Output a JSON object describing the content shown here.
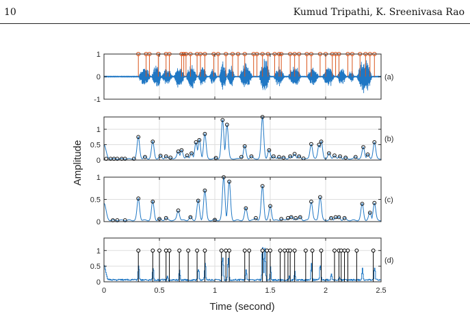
{
  "header": {
    "page_number": "10",
    "authors": "Kumud Tripathi, K. Sreenivasa Rao"
  },
  "figure": {
    "ylabel": "Amplitude",
    "xlabel": "Time (second)"
  },
  "colors": {
    "signal": "#1f77c4",
    "marker_stems": "#d95319",
    "detected_stems": "#000000",
    "grid": "#dddddd",
    "axes": "#262626"
  },
  "chart_data": [
    {
      "type": "line",
      "panel_label": "(a)",
      "description_series": "speech waveform with stem markers",
      "xlim": [
        0,
        2.5
      ],
      "ylim": [
        -1,
        1
      ],
      "yticks": [
        "-1",
        "0",
        "1"
      ],
      "bursts": [
        {
          "x0": 0.31,
          "x1": 0.42,
          "amp": 0.5
        },
        {
          "x0": 0.43,
          "x1": 0.52,
          "amp": 0.62
        },
        {
          "x0": 0.52,
          "x1": 0.62,
          "amp": 0.45
        },
        {
          "x0": 0.63,
          "x1": 0.73,
          "amp": 0.55
        },
        {
          "x0": 0.74,
          "x1": 0.84,
          "amp": 0.62
        },
        {
          "x0": 0.85,
          "x1": 0.93,
          "amp": 0.5
        },
        {
          "x0": 0.95,
          "x1": 1.02,
          "amp": 0.42
        },
        {
          "x0": 1.04,
          "x1": 1.11,
          "amp": 0.8
        },
        {
          "x0": 1.11,
          "x1": 1.18,
          "amp": 0.55
        },
        {
          "x0": 1.22,
          "x1": 1.34,
          "amp": 0.62
        },
        {
          "x0": 1.4,
          "x1": 1.5,
          "amp": 0.9
        },
        {
          "x0": 1.53,
          "x1": 1.63,
          "amp": 0.5
        },
        {
          "x0": 1.66,
          "x1": 1.78,
          "amp": 0.55
        },
        {
          "x0": 1.83,
          "x1": 1.94,
          "amp": 0.45
        },
        {
          "x0": 1.97,
          "x1": 2.08,
          "amp": 0.55
        },
        {
          "x0": 2.1,
          "x1": 2.19,
          "amp": 0.4
        },
        {
          "x0": 2.2,
          "x1": 2.26,
          "amp": 0.3
        },
        {
          "x0": 2.28,
          "x1": 2.42,
          "amp": 0.9
        }
      ],
      "stems_x": [
        0.31,
        0.38,
        0.41,
        0.49,
        0.56,
        0.59,
        0.7,
        0.72,
        0.74,
        0.78,
        0.84,
        0.87,
        0.91,
        0.99,
        1.03,
        1.1,
        1.16,
        1.21,
        1.27,
        1.35,
        1.38,
        1.43,
        1.48,
        1.54,
        1.58,
        1.6,
        1.68,
        1.72,
        1.76,
        1.83,
        1.87,
        1.95,
        2.0,
        2.06,
        2.09,
        2.12,
        2.2,
        2.24,
        2.31,
        2.36,
        2.4,
        2.44
      ],
      "stem_height": 1
    },
    {
      "type": "line",
      "panel_label": "(b)",
      "xlim": [
        0,
        2.5
      ],
      "ylim": [
        0,
        1.4
      ],
      "yticks": [
        "0",
        "0.5",
        "1"
      ],
      "baseline": 0.04,
      "start_value": 0.45,
      "peaks": [
        {
          "x": 0.31,
          "y": 0.75
        },
        {
          "x": 0.37,
          "y": 0.1
        },
        {
          "x": 0.44,
          "y": 0.6
        },
        {
          "x": 0.51,
          "y": 0.14
        },
        {
          "x": 0.56,
          "y": 0.12
        },
        {
          "x": 0.6,
          "y": 0.08
        },
        {
          "x": 0.67,
          "y": 0.28
        },
        {
          "x": 0.7,
          "y": 0.32
        },
        {
          "x": 0.75,
          "y": 0.15
        },
        {
          "x": 0.79,
          "y": 0.22
        },
        {
          "x": 0.83,
          "y": 0.58
        },
        {
          "x": 0.86,
          "y": 0.65
        },
        {
          "x": 0.91,
          "y": 0.85
        },
        {
          "x": 1.01,
          "y": 0.07
        },
        {
          "x": 1.07,
          "y": 1.3
        },
        {
          "x": 1.11,
          "y": 1.15
        },
        {
          "x": 1.24,
          "y": 0.1
        },
        {
          "x": 1.27,
          "y": 0.45
        },
        {
          "x": 1.33,
          "y": 0.12
        },
        {
          "x": 1.43,
          "y": 1.4
        },
        {
          "x": 1.49,
          "y": 0.32
        },
        {
          "x": 1.53,
          "y": 0.12
        },
        {
          "x": 1.58,
          "y": 0.1
        },
        {
          "x": 1.62,
          "y": 0.08
        },
        {
          "x": 1.68,
          "y": 0.12
        },
        {
          "x": 1.72,
          "y": 0.2
        },
        {
          "x": 1.76,
          "y": 0.12
        },
        {
          "x": 1.8,
          "y": 0.05
        },
        {
          "x": 1.87,
          "y": 0.52
        },
        {
          "x": 1.94,
          "y": 0.5
        },
        {
          "x": 1.96,
          "y": 0.6
        },
        {
          "x": 2.03,
          "y": 0.22
        },
        {
          "x": 2.08,
          "y": 0.15
        },
        {
          "x": 2.13,
          "y": 0.12
        },
        {
          "x": 2.18,
          "y": 0.08
        },
        {
          "x": 2.27,
          "y": 0.1
        },
        {
          "x": 2.34,
          "y": 0.42
        },
        {
          "x": 2.38,
          "y": 0.18
        },
        {
          "x": 2.44,
          "y": 0.58
        }
      ],
      "base_markers_x": [
        0.02,
        0.06,
        0.09,
        0.12,
        0.16,
        0.19,
        0.27
      ]
    },
    {
      "type": "line",
      "panel_label": "(c)",
      "xlim": [
        0,
        2.5
      ],
      "ylim": [
        0,
        1
      ],
      "yticks": [
        "0",
        "0.5",
        "1"
      ],
      "baseline": 0.03,
      "start_value": 0.38,
      "peaks": [
        {
          "x": 0.31,
          "y": 0.52
        },
        {
          "x": 0.44,
          "y": 0.45
        },
        {
          "x": 0.5,
          "y": 0.06
        },
        {
          "x": 0.56,
          "y": 0.08
        },
        {
          "x": 0.67,
          "y": 0.25
        },
        {
          "x": 0.78,
          "y": 0.1
        },
        {
          "x": 0.85,
          "y": 0.47
        },
        {
          "x": 0.91,
          "y": 0.7
        },
        {
          "x": 1.0,
          "y": 0.04
        },
        {
          "x": 1.08,
          "y": 1.0
        },
        {
          "x": 1.13,
          "y": 0.9
        },
        {
          "x": 1.28,
          "y": 0.3
        },
        {
          "x": 1.37,
          "y": 0.08
        },
        {
          "x": 1.43,
          "y": 0.8
        },
        {
          "x": 1.5,
          "y": 0.35
        },
        {
          "x": 1.6,
          "y": 0.06
        },
        {
          "x": 1.66,
          "y": 0.08
        },
        {
          "x": 1.69,
          "y": 0.1
        },
        {
          "x": 1.73,
          "y": 0.08
        },
        {
          "x": 1.77,
          "y": 0.1
        },
        {
          "x": 1.87,
          "y": 0.45
        },
        {
          "x": 1.95,
          "y": 0.55
        },
        {
          "x": 2.05,
          "y": 0.08
        },
        {
          "x": 2.09,
          "y": 0.1
        },
        {
          "x": 2.12,
          "y": 0.1
        },
        {
          "x": 2.17,
          "y": 0.08
        },
        {
          "x": 2.33,
          "y": 0.4
        },
        {
          "x": 2.4,
          "y": 0.2
        },
        {
          "x": 2.44,
          "y": 0.42
        }
      ],
      "base_markers_x": [
        0.08,
        0.12,
        0.19
      ]
    },
    {
      "type": "line",
      "panel_label": "(d)",
      "xlim": [
        0,
        2.5
      ],
      "ylim": [
        0,
        1.4
      ],
      "yticks": [
        "0",
        "0.5",
        "1"
      ],
      "xticks": [
        "0",
        "0.5",
        "1",
        "1.5",
        "2",
        "2.5"
      ],
      "xtick_values": [
        0,
        0.5,
        1,
        1.5,
        2,
        2.5
      ],
      "baseline": 0.06,
      "start_value": 0.45,
      "spikes": [
        {
          "x": 0.31,
          "y": 0.6
        },
        {
          "x": 0.44,
          "y": 0.55
        },
        {
          "x": 0.57,
          "y": 0.2
        },
        {
          "x": 0.68,
          "y": 0.4
        },
        {
          "x": 0.85,
          "y": 0.55
        },
        {
          "x": 0.91,
          "y": 0.75
        },
        {
          "x": 1.07,
          "y": 1.0
        },
        {
          "x": 1.12,
          "y": 0.9
        },
        {
          "x": 1.28,
          "y": 0.4
        },
        {
          "x": 1.43,
          "y": 1.4
        },
        {
          "x": 1.45,
          "y": 1.15
        },
        {
          "x": 1.5,
          "y": 0.5
        },
        {
          "x": 1.67,
          "y": 0.2
        },
        {
          "x": 1.72,
          "y": 0.35
        },
        {
          "x": 1.87,
          "y": 0.6
        },
        {
          "x": 1.95,
          "y": 0.7
        },
        {
          "x": 2.05,
          "y": 0.35
        },
        {
          "x": 2.12,
          "y": 0.2
        },
        {
          "x": 2.33,
          "y": 0.5
        },
        {
          "x": 2.44,
          "y": 0.55
        }
      ],
      "stems_x": [
        0.31,
        0.44,
        0.5,
        0.56,
        0.59,
        0.68,
        0.76,
        0.84,
        0.91,
        1.06,
        1.1,
        1.13,
        1.27,
        1.31,
        1.43,
        1.47,
        1.5,
        1.59,
        1.63,
        1.66,
        1.68,
        1.72,
        1.82,
        1.88,
        1.96,
        2.08,
        2.12,
        2.14,
        2.17,
        2.2,
        2.28,
        2.43
      ],
      "stem_height": 1
    }
  ]
}
